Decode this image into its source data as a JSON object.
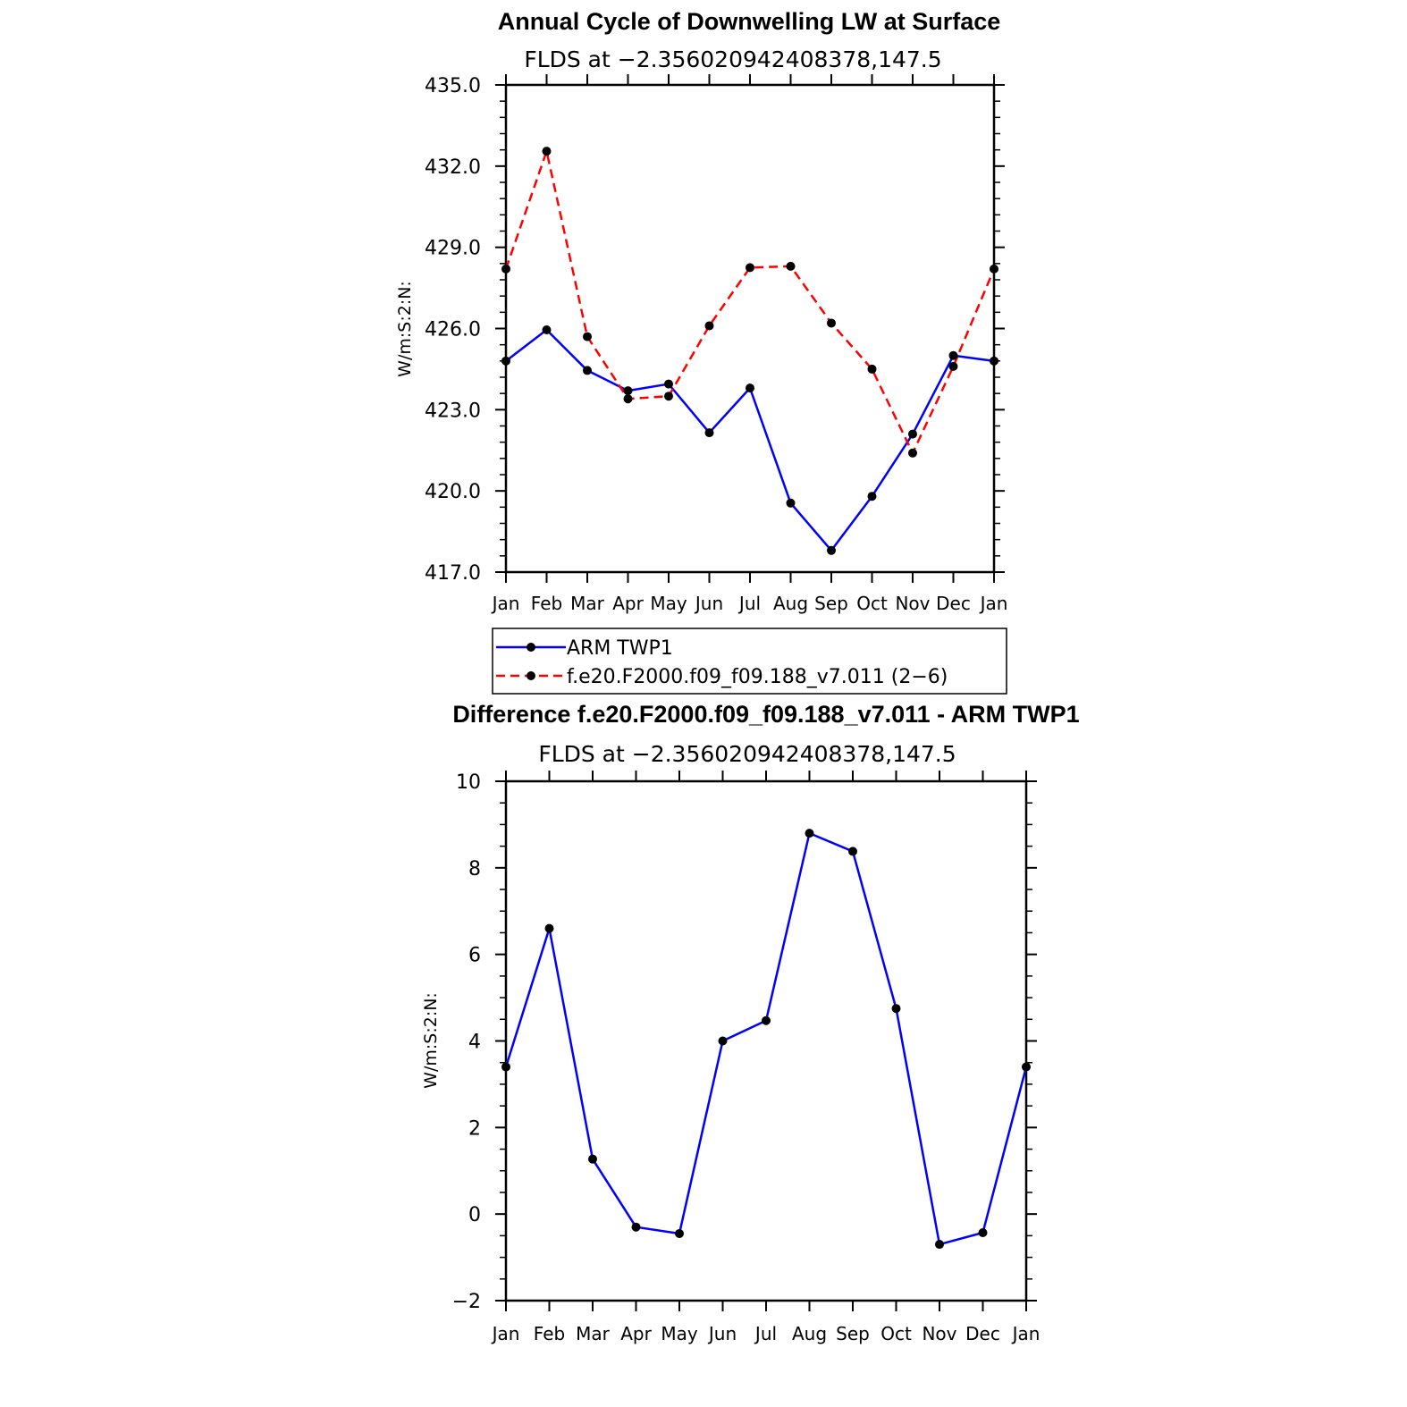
{
  "chart_data": [
    {
      "type": "line",
      "title": "Annual Cycle of Downwelling LW at Surface",
      "subtitle": "FLDS at −2.356020942408378,147.5",
      "ylabel": "W/m:S:2:N:",
      "xlabel": "",
      "categories": [
        "Jan",
        "Feb",
        "Mar",
        "Apr",
        "May",
        "Jun",
        "Jul",
        "Aug",
        "Sep",
        "Oct",
        "Nov",
        "Dec",
        "Jan"
      ],
      "ylim": [
        417.0,
        435.0
      ],
      "yticks": [
        "417.0",
        "420.0",
        "423.0",
        "426.0",
        "429.0",
        "432.0",
        "435.0"
      ],
      "series": [
        {
          "name": "ARM TWP1",
          "color": "#0000ff",
          "style": "solid",
          "values": [
            424.8,
            425.95,
            424.45,
            423.7,
            423.95,
            422.15,
            423.8,
            419.55,
            417.8,
            419.8,
            422.1,
            425.0,
            424.8
          ]
        },
        {
          "name": "f.e20.F2000.f09_f09.188_v7.011 (2−6)",
          "color": "#ff0000",
          "style": "dashed",
          "values": [
            428.2,
            432.55,
            425.7,
            423.4,
            423.5,
            426.1,
            428.25,
            428.3,
            426.2,
            424.5,
            421.4,
            424.6,
            428.2
          ]
        }
      ],
      "legend": "below"
    },
    {
      "type": "line",
      "title": "Difference f.e20.F2000.f09_f09.188_v7.011 - ARM TWP1",
      "subtitle": "FLDS at −2.356020942408378,147.5",
      "ylabel": "W/m:S:2:N:",
      "xlabel": "",
      "categories": [
        "Jan",
        "Feb",
        "Mar",
        "Apr",
        "May",
        "Jun",
        "Jul",
        "Aug",
        "Sep",
        "Oct",
        "Nov",
        "Dec",
        "Jan"
      ],
      "ylim": [
        -2,
        10
      ],
      "yticks": [
        "−2",
        "0",
        "2",
        "4",
        "6",
        "8",
        "10"
      ],
      "series": [
        {
          "color": "#0000ff",
          "style": "solid",
          "values": [
            3.4,
            6.6,
            1.27,
            -0.3,
            -0.45,
            4.0,
            4.47,
            8.8,
            8.38,
            4.75,
            -0.7,
            -0.43,
            3.4
          ]
        }
      ]
    }
  ]
}
